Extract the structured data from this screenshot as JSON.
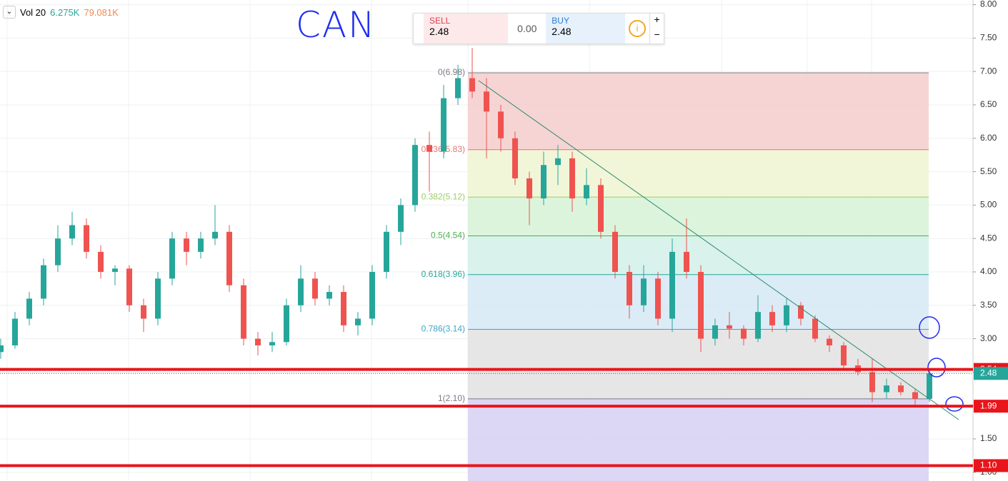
{
  "toolbar": {
    "indicator": "Vol 20",
    "value1": "6.275K",
    "value2": "79.081K"
  },
  "annotation": "CAN",
  "trade_panel": {
    "sell_label": "SELL",
    "sell_price": "2.48",
    "spread": "0.00",
    "buy_label": "BUY",
    "buy_price": "2.48",
    "plus": "+",
    "minus": "−"
  },
  "chart_data": {
    "type": "candlestick",
    "ylim": [
      0.87,
      8.07
    ],
    "yticks": [
      {
        "value": 8,
        "label": "8.00"
      },
      {
        "value": 7.5,
        "label": "7.50"
      },
      {
        "value": 7,
        "label": "7.00"
      },
      {
        "value": 6.5,
        "label": "6.50"
      },
      {
        "value": 6,
        "label": "6.00"
      },
      {
        "value": 5.5,
        "label": "5.50"
      },
      {
        "value": 5,
        "label": "5.00"
      },
      {
        "value": 4.5,
        "label": "4.50"
      },
      {
        "value": 4,
        "label": "4.00"
      },
      {
        "value": 3.5,
        "label": "3.50"
      },
      {
        "value": 3,
        "label": "3.00"
      },
      {
        "value": 2.5,
        "label": "2.50"
      },
      {
        "value": 2,
        "label": "2.00"
      },
      {
        "value": 1.5,
        "label": "1.50"
      },
      {
        "value": 1,
        "label": "1.00"
      }
    ],
    "grid": true,
    "up_color": "#26a69a",
    "down_color": "#ef5350",
    "candles": [
      [
        2.8,
        3.0,
        2.7,
        2.9
      ],
      [
        2.9,
        3.4,
        2.85,
        3.3
      ],
      [
        3.3,
        3.7,
        3.2,
        3.6
      ],
      [
        3.6,
        4.2,
        3.5,
        4.1
      ],
      [
        4.1,
        4.7,
        4.0,
        4.5
      ],
      [
        4.5,
        4.9,
        4.4,
        4.7
      ],
      [
        4.7,
        4.8,
        4.2,
        4.3
      ],
      [
        4.3,
        4.4,
        3.9,
        4.0
      ],
      [
        4.0,
        4.1,
        3.8,
        4.05
      ],
      [
        4.05,
        4.1,
        3.4,
        3.5
      ],
      [
        3.5,
        3.6,
        3.1,
        3.3
      ],
      [
        3.3,
        4.0,
        3.2,
        3.9
      ],
      [
        3.9,
        4.6,
        3.8,
        4.5
      ],
      [
        4.5,
        4.6,
        4.1,
        4.3
      ],
      [
        4.3,
        4.6,
        4.2,
        4.5
      ],
      [
        4.5,
        5.0,
        4.4,
        4.6
      ],
      [
        4.6,
        4.7,
        3.7,
        3.8
      ],
      [
        3.8,
        3.9,
        2.9,
        3.0
      ],
      [
        3.0,
        3.1,
        2.75,
        2.9
      ],
      [
        2.9,
        3.1,
        2.8,
        2.95
      ],
      [
        2.95,
        3.6,
        2.9,
        3.5
      ],
      [
        3.5,
        4.1,
        3.4,
        3.9
      ],
      [
        3.9,
        4.0,
        3.5,
        3.6
      ],
      [
        3.6,
        3.8,
        3.5,
        3.7
      ],
      [
        3.7,
        3.8,
        3.1,
        3.2
      ],
      [
        3.2,
        3.4,
        3.05,
        3.3
      ],
      [
        3.3,
        4.1,
        3.2,
        4.0
      ],
      [
        4.0,
        4.7,
        3.9,
        4.6
      ],
      [
        4.6,
        5.1,
        4.4,
        5.0
      ],
      [
        5.0,
        6.0,
        4.9,
        5.9
      ],
      [
        5.9,
        6.1,
        5.2,
        5.8
      ],
      [
        5.8,
        6.8,
        5.7,
        6.6
      ],
      [
        6.6,
        7.1,
        6.5,
        6.9
      ],
      [
        6.9,
        7.35,
        6.6,
        6.7
      ],
      [
        6.7,
        6.9,
        5.7,
        6.4
      ],
      [
        6.4,
        6.5,
        5.8,
        6.0
      ],
      [
        6.0,
        6.1,
        5.3,
        5.4
      ],
      [
        5.4,
        5.5,
        4.7,
        5.1
      ],
      [
        5.1,
        5.8,
        5.0,
        5.6
      ],
      [
        5.6,
        5.9,
        5.3,
        5.7
      ],
      [
        5.7,
        5.8,
        4.9,
        5.1
      ],
      [
        5.1,
        5.55,
        5.0,
        5.3
      ],
      [
        5.3,
        5.4,
        4.5,
        4.6
      ],
      [
        4.6,
        4.7,
        3.9,
        4.0
      ],
      [
        4.0,
        4.1,
        3.3,
        3.5
      ],
      [
        3.5,
        4.1,
        3.4,
        3.9
      ],
      [
        3.9,
        4.0,
        3.2,
        3.3
      ],
      [
        3.3,
        4.5,
        3.1,
        4.3
      ],
      [
        4.3,
        4.8,
        3.9,
        4.0
      ],
      [
        4.0,
        4.1,
        2.8,
        3.0
      ],
      [
        3.0,
        3.3,
        2.9,
        3.2
      ],
      [
        3.2,
        3.4,
        3.0,
        3.15
      ],
      [
        3.15,
        3.2,
        2.9,
        3.0
      ],
      [
        3.0,
        3.65,
        2.95,
        3.4
      ],
      [
        3.4,
        3.5,
        3.1,
        3.2
      ],
      [
        3.2,
        3.6,
        3.1,
        3.5
      ],
      [
        3.5,
        3.55,
        3.2,
        3.3
      ],
      [
        3.3,
        3.35,
        2.95,
        3.0
      ],
      [
        3.0,
        3.05,
        2.8,
        2.9
      ],
      [
        2.9,
        2.95,
        2.55,
        2.6
      ],
      [
        2.6,
        2.7,
        2.45,
        2.5
      ],
      [
        2.5,
        2.7,
        2.05,
        2.2
      ],
      [
        2.2,
        2.4,
        2.1,
        2.3
      ],
      [
        2.3,
        2.35,
        2.15,
        2.2
      ],
      [
        2.2,
        2.25,
        2.0,
        2.1
      ],
      [
        2.1,
        2.55,
        2.05,
        2.48
      ]
    ],
    "fib_levels": [
      {
        "value": 6.98,
        "label": "0(6.98)",
        "color": "#787b86",
        "zone": "#f4cccc"
      },
      {
        "value": 5.83,
        "label": "0.236(5.83)",
        "color": "#e57373",
        "zone": "#eef5d2"
      },
      {
        "value": 5.12,
        "label": "0.382(5.12)",
        "color": "#9ccc65",
        "zone": "#d6f2d6"
      },
      {
        "value": 4.54,
        "label": "0.5(4.54)",
        "color": "#4caf50",
        "zone": "#d2f0e8"
      },
      {
        "value": 3.96,
        "label": "0.618(3.96)",
        "color": "#26a69a",
        "zone": "#d5e9f5"
      },
      {
        "value": 3.14,
        "label": "0.786(3.14)",
        "color": "#42a5c5",
        "zone": "#e2e2e2"
      },
      {
        "value": 2.1,
        "label": "1(2.10)",
        "color": "#787b86",
        "zone": "#d5d0f3"
      }
    ],
    "levels": [
      {
        "value": 2.54,
        "label": "2.54"
      },
      {
        "value": 1.99,
        "label": "1.99"
      },
      {
        "value": 1.1,
        "label": "1.10"
      }
    ],
    "level_color": "#e8151b",
    "last_price": {
      "value": 2.48,
      "label": "2.48"
    }
  }
}
